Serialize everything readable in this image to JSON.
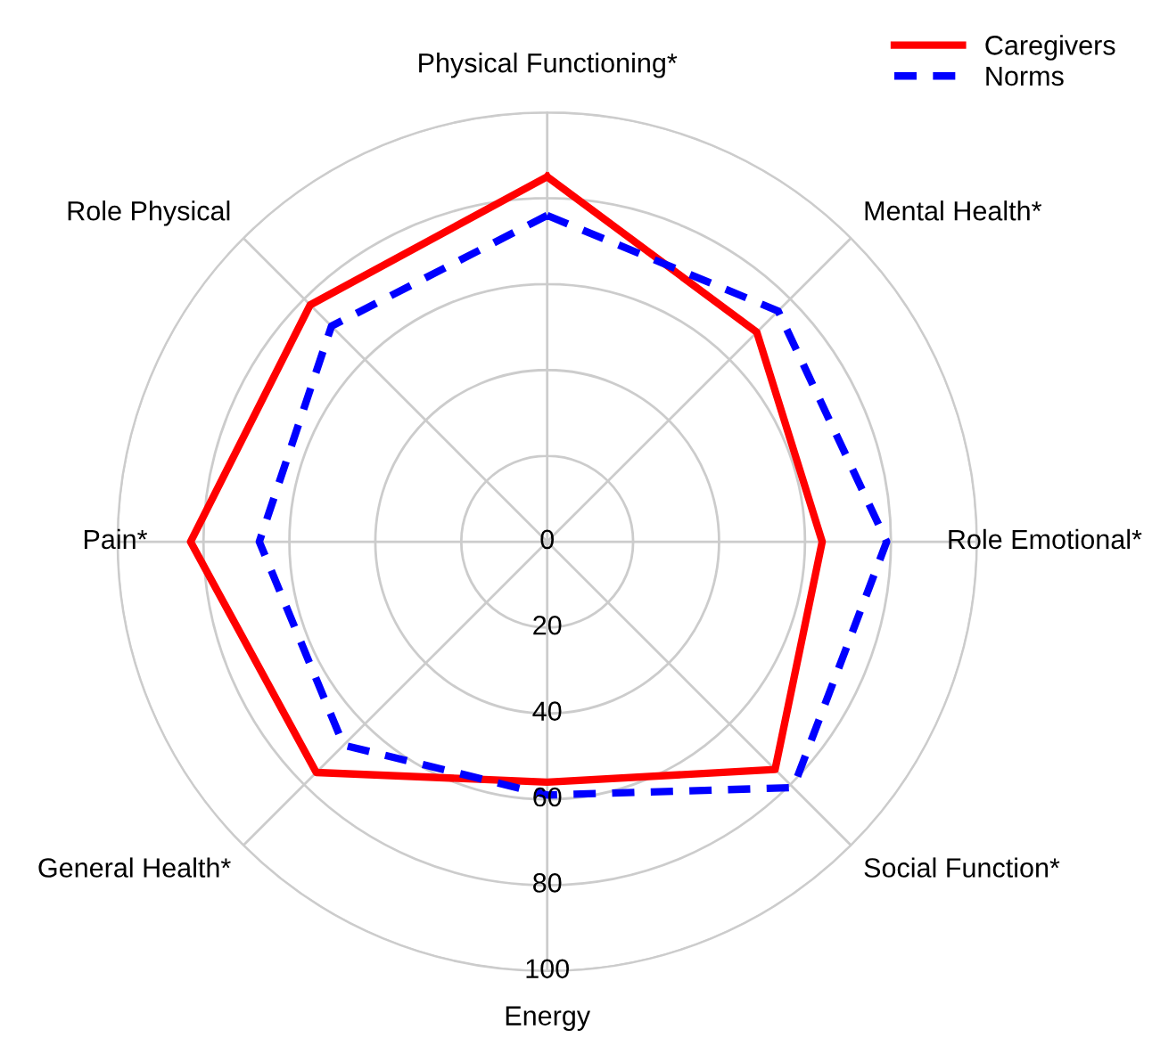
{
  "chart_data": {
    "type": "radar",
    "categories": [
      "Physical Functioning*",
      "Mental Health*",
      "Role Emotional*",
      "Social Function*",
      "Energy",
      "General Health*",
      "Pain*",
      "Role Physical"
    ],
    "series": [
      {
        "name": "Caregivers",
        "color": "#ff0000",
        "line_style": "solid",
        "values": [
          85,
          69,
          64,
          75,
          56,
          76,
          83,
          78
        ]
      },
      {
        "name": "Norms",
        "color": "#0000ff",
        "line_style": "dashed",
        "values": [
          76,
          76,
          79,
          81,
          59,
          67,
          67,
          71
        ]
      }
    ],
    "ylim": [
      0,
      100
    ],
    "yticks": [
      0,
      20,
      40,
      60,
      80,
      100
    ],
    "grid": true,
    "legend": "top right",
    "marker": "none"
  }
}
